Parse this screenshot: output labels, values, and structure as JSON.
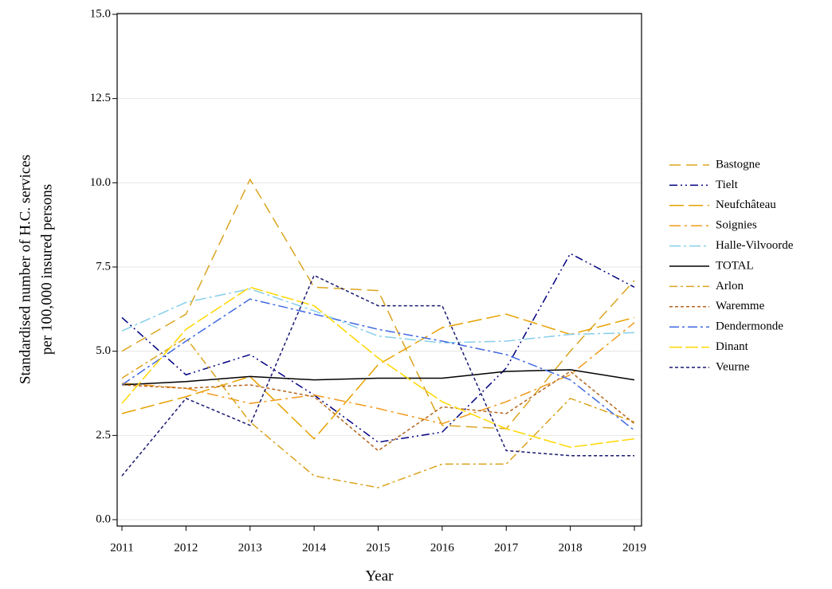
{
  "chart_data": {
    "type": "line",
    "xlabel": "Year",
    "ylabel": [
      "Standardised number of H.C. services",
      "per 100,000 insured persons"
    ],
    "x": [
      2011,
      2012,
      2013,
      2014,
      2015,
      2016,
      2017,
      2018,
      2019
    ],
    "xlim": [
      2011,
      2019
    ],
    "xticks": [
      2011,
      2012,
      2013,
      2014,
      2015,
      2016,
      2017,
      2018,
      2019
    ],
    "ylim": [
      0,
      15
    ],
    "yticks": [
      {
        "value": 0,
        "label": "0.0"
      },
      2.5,
      {
        "value": 5,
        "label": "5.0"
      },
      7.5,
      {
        "value": 10,
        "label": "10.0"
      },
      12.5,
      {
        "value": 15,
        "label": "15.0"
      }
    ],
    "grid": true,
    "legend": "right",
    "series": [
      {
        "name": "Bastogne",
        "color": "#DAA520",
        "dash": "14,7",
        "values": [
          5.0,
          6.1,
          10.1,
          6.9,
          6.8,
          2.8,
          2.7,
          5.0,
          7.1
        ]
      },
      {
        "name": "Tielt",
        "color": "#000080",
        "dash": "10,4,2,4,2,4",
        "values": [
          6.0,
          4.3,
          4.9,
          3.7,
          2.3,
          2.6,
          4.5,
          7.9,
          6.9
        ]
      },
      {
        "name": "Neufchâteau",
        "color": "#E6A100",
        "dash": "18,6",
        "values": [
          3.15,
          3.65,
          4.25,
          2.4,
          4.6,
          5.7,
          6.1,
          5.5,
          6.0
        ]
      },
      {
        "name": "Soignies",
        "color": "#F29B1D",
        "dash": "14,5,3,5",
        "values": [
          4.05,
          3.9,
          3.45,
          3.7,
          3.3,
          2.85,
          3.5,
          4.3,
          5.85
        ]
      },
      {
        "name": "Halle-Vilvoorde",
        "color": "#87CEEB",
        "dash": "14,4,3,4",
        "values": [
          5.6,
          6.45,
          6.85,
          6.2,
          5.45,
          5.25,
          5.3,
          5.5,
          5.55
        ]
      },
      {
        "name": "TOTAL",
        "color": "#000000",
        "dash": "",
        "values": [
          4.0,
          4.1,
          4.25,
          4.15,
          4.2,
          4.2,
          4.4,
          4.45,
          4.15
        ]
      },
      {
        "name": "Arlon",
        "color": "#DAA520",
        "dash": "10,4,3,4",
        "values": [
          4.2,
          5.4,
          2.9,
          1.3,
          0.95,
          1.65,
          1.65,
          3.6,
          2.9
        ]
      },
      {
        "name": "Waremme",
        "color": "#B5651D",
        "dash": "4,3",
        "values": [
          4.0,
          3.9,
          4.0,
          3.65,
          2.05,
          3.35,
          3.15,
          4.4,
          2.85
        ]
      },
      {
        "name": "Dendermonde",
        "color": "#4169E1",
        "dash": "12,4,3,4",
        "values": [
          4.0,
          5.3,
          6.55,
          6.1,
          5.65,
          5.3,
          4.9,
          4.15,
          2.65
        ]
      },
      {
        "name": "Dinant",
        "color": "#FFD700",
        "dash": "16,4",
        "values": [
          3.45,
          5.65,
          6.9,
          6.35,
          4.8,
          3.5,
          2.7,
          2.15,
          2.4
        ]
      },
      {
        "name": "Veurne",
        "color": "#191970",
        "dash": "4,3",
        "values": [
          1.3,
          3.6,
          2.8,
          7.25,
          6.35,
          6.35,
          2.05,
          1.9,
          1.9
        ]
      }
    ]
  }
}
